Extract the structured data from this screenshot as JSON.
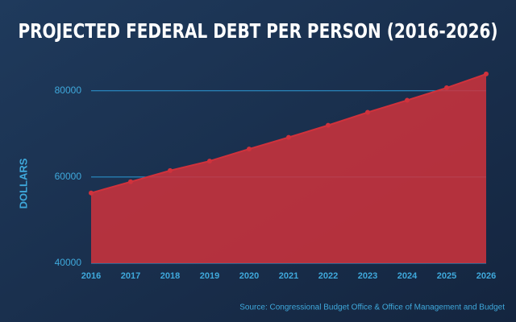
{
  "chart_data": {
    "type": "area",
    "title": "PROJECTED FEDERAL DEBT PER PERSON (2016-2026)",
    "y_label": "DOLLARS",
    "source": "Source: Congressional Budget Office & Office of Management and Budget",
    "x": [
      2016,
      2017,
      2018,
      2019,
      2020,
      2021,
      2022,
      2023,
      2024,
      2025,
      2026
    ],
    "values": [
      56300,
      58900,
      61500,
      63700,
      66500,
      69200,
      72000,
      75000,
      77800,
      80700,
      83900
    ],
    "color": "#d0323c",
    "xlim": [
      2016,
      2026
    ],
    "xticks": [
      2016,
      2017,
      2018,
      2019,
      2020,
      2021,
      2022,
      2023,
      2024,
      2025,
      2026
    ],
    "ylim": [
      40000,
      85000
    ],
    "yticks": [
      40000,
      60000,
      80000
    ],
    "grid": true
  }
}
